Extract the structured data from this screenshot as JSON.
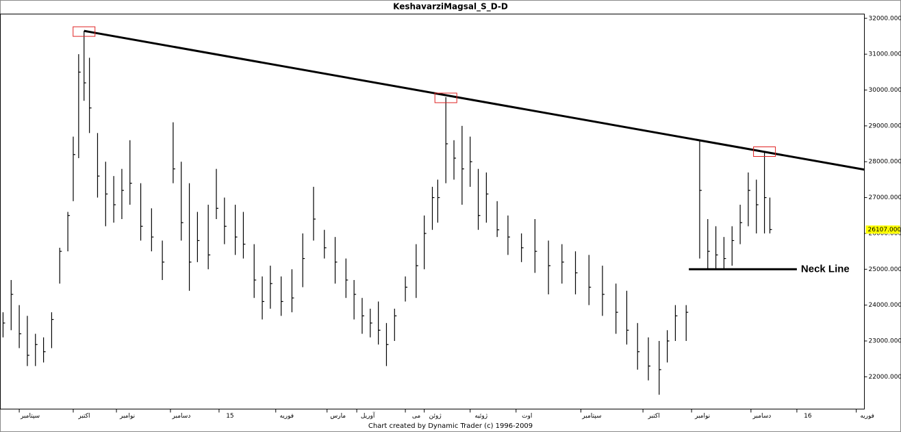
{
  "chart_data": {
    "type": "hlc",
    "title": "KeshavarziMagsal_S_D-D",
    "footer": "Chart created by Dynamic Trader  (c) 1996-2009",
    "xlim": [
      0,
      320
    ],
    "ylim": [
      21100,
      32120
    ],
    "xticks": [
      {
        "value": 7,
        "label": "سپتامبر"
      },
      {
        "value": 27,
        "label": "اکتبر"
      },
      {
        "value": 43,
        "label": "نوامبر"
      },
      {
        "value": 63,
        "label": "دسامبر"
      },
      {
        "value": 81,
        "label": "15"
      },
      {
        "value": 102,
        "label": "فوریه"
      },
      {
        "value": 121,
        "label": "مارس"
      },
      {
        "value": 132,
        "label": "آوریل"
      },
      {
        "value": 150,
        "label": "می"
      },
      {
        "value": 157,
        "label": "ژوئن"
      },
      {
        "value": 174,
        "label": "ژوئیه"
      },
      {
        "value": 191,
        "label": "اوت"
      },
      {
        "value": 215,
        "label": "سپتامبر"
      },
      {
        "value": 238,
        "label": "اکتبر"
      },
      {
        "value": 256,
        "label": "نوامبر"
      },
      {
        "value": 278,
        "label": "دسامبر"
      },
      {
        "value": 295,
        "label": "16"
      },
      {
        "value": 317,
        "label": "فوریه"
      }
    ],
    "yticks": [
      {
        "value": 22000,
        "label": "22000.000"
      },
      {
        "value": 23000,
        "label": "23000.000"
      },
      {
        "value": 24000,
        "label": "24000.000"
      },
      {
        "value": 25000,
        "label": "25000.000"
      },
      {
        "value": 26000,
        "label": "26000.000"
      },
      {
        "value": 27000,
        "label": "27000.000"
      },
      {
        "value": 28000,
        "label": "28000.000"
      },
      {
        "value": 29000,
        "label": "29000.000"
      },
      {
        "value": 30000,
        "label": "30000.000"
      },
      {
        "value": 31000,
        "label": "31000.000"
      },
      {
        "value": 32000,
        "label": "32000.000"
      }
    ],
    "color": "#000000",
    "x": [
      1,
      4,
      7,
      10,
      13,
      16,
      19,
      22,
      25,
      27,
      29,
      31,
      33,
      36,
      39,
      42,
      45,
      48,
      52,
      56,
      60,
      64,
      67,
      70,
      73,
      77,
      80,
      83,
      87,
      90,
      94,
      97,
      100,
      104,
      108,
      112,
      116,
      120,
      124,
      128,
      131,
      134,
      137,
      140,
      143,
      146,
      150,
      154,
      157,
      160,
      162,
      165,
      168,
      171,
      174,
      177,
      180,
      184,
      188,
      193,
      198,
      203,
      208,
      213,
      218,
      223,
      228,
      232,
      236,
      240,
      244,
      247,
      250,
      254,
      259,
      262,
      265,
      268,
      271,
      274,
      277,
      280,
      283,
      285
    ],
    "high": [
      23800,
      24700,
      24000,
      23700,
      23200,
      23100,
      23800,
      25600,
      26600,
      28700,
      31000,
      31650,
      30900,
      28800,
      28000,
      27600,
      27800,
      28600,
      27400,
      26700,
      25800,
      29100,
      28000,
      27400,
      26600,
      26800,
      27800,
      27000,
      26800,
      26600,
      25700,
      24800,
      25100,
      24800,
      25000,
      26000,
      27300,
      26100,
      25900,
      25300,
      24700,
      24200,
      23900,
      24100,
      23500,
      23900,
      24800,
      25700,
      26500,
      27300,
      27500,
      29800,
      28600,
      29000,
      28700,
      27800,
      27700,
      26900,
      26500,
      26000,
      26400,
      25800,
      25700,
      25500,
      25400,
      25100,
      24600,
      24400,
      23500,
      23100,
      23000,
      23300,
      24000,
      24000,
      28600,
      26400,
      26200,
      25900,
      26200,
      26800,
      27700,
      27500,
      28300,
      27000
    ],
    "low": [
      23100,
      23300,
      22800,
      22300,
      22300,
      22400,
      22800,
      24600,
      25500,
      26900,
      28100,
      29700,
      28800,
      27000,
      26200,
      26300,
      26400,
      26800,
      25800,
      25500,
      24700,
      27400,
      25800,
      24400,
      25200,
      25000,
      26400,
      25700,
      25400,
      25300,
      24200,
      23600,
      23900,
      23700,
      23800,
      24500,
      25800,
      25300,
      24600,
      24200,
      23600,
      23200,
      23100,
      22900,
      22300,
      23000,
      24100,
      24200,
      25000,
      26100,
      26300,
      27400,
      27500,
      26800,
      27300,
      26100,
      26300,
      25900,
      25400,
      25200,
      24900,
      24300,
      24600,
      24300,
      24000,
      23700,
      23200,
      22900,
      22200,
      21900,
      21500,
      22400,
      23000,
      23000,
      25300,
      25000,
      25000,
      25000,
      25100,
      25700,
      26200,
      26000,
      26000,
      26000
    ],
    "close": [
      23500,
      24300,
      23200,
      22600,
      22900,
      22700,
      23600,
      25500,
      26500,
      28200,
      30500,
      30200,
      29500,
      27600,
      27100,
      26800,
      27200,
      27400,
      26200,
      25900,
      25200,
      27800,
      26300,
      25200,
      25800,
      25400,
      26700,
      26200,
      25900,
      25700,
      24700,
      24100,
      24600,
      24100,
      24200,
      25300,
      26400,
      25600,
      25200,
      24700,
      24300,
      23700,
      23500,
      23300,
      22900,
      23700,
      24500,
      25100,
      26000,
      27000,
      27000,
      28500,
      28100,
      27800,
      28000,
      26500,
      27100,
      26100,
      25900,
      25600,
      25500,
      25100,
      25200,
      24900,
      24500,
      24300,
      23800,
      23300,
      22700,
      22300,
      22200,
      23000,
      23700,
      23800,
      27200,
      25500,
      25400,
      25300,
      25800,
      26300,
      27200,
      26800,
      27000,
      26107
    ],
    "trendline": {
      "x": [
        31,
        320
      ],
      "y": [
        31650,
        27780
      ],
      "color": "#000000"
    },
    "neck_line": {
      "label": "Neck Line",
      "x": [
        255,
        295
      ],
      "y": 25000,
      "color": "#000000"
    },
    "highlights": {
      "x": [
        31,
        165,
        283
      ],
      "y": [
        31650,
        29800,
        28300
      ],
      "color": "#e02020"
    },
    "last_price": {
      "value": 26107,
      "label": "26107.000",
      "color": "#ffff00"
    }
  }
}
